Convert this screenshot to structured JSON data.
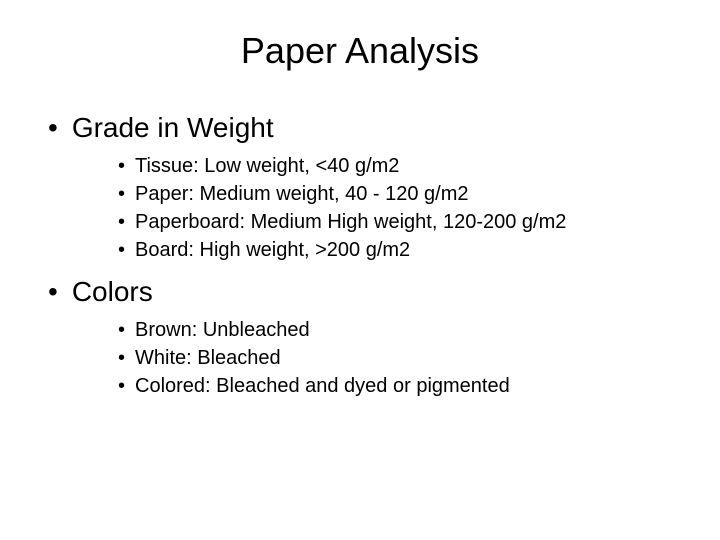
{
  "title": "Paper Analysis",
  "background_color": "#ffffff",
  "text_color": "#000000",
  "title_fontsize": 36,
  "level1_fontsize": 28,
  "level2_fontsize": 20,
  "sections": [
    {
      "heading": "Grade in Weight",
      "items": [
        "Tissue: Low weight, <40 g/m2",
        "Paper: Medium weight, 40 - 120 g/m2",
        "Paperboard: Medium High weight, 120-200 g/m2",
        "Board: High weight, >200 g/m2"
      ]
    },
    {
      "heading": "Colors",
      "items": [
        "Brown: Unbleached",
        "White: Bleached",
        "Colored: Bleached and dyed or pigmented"
      ]
    }
  ]
}
